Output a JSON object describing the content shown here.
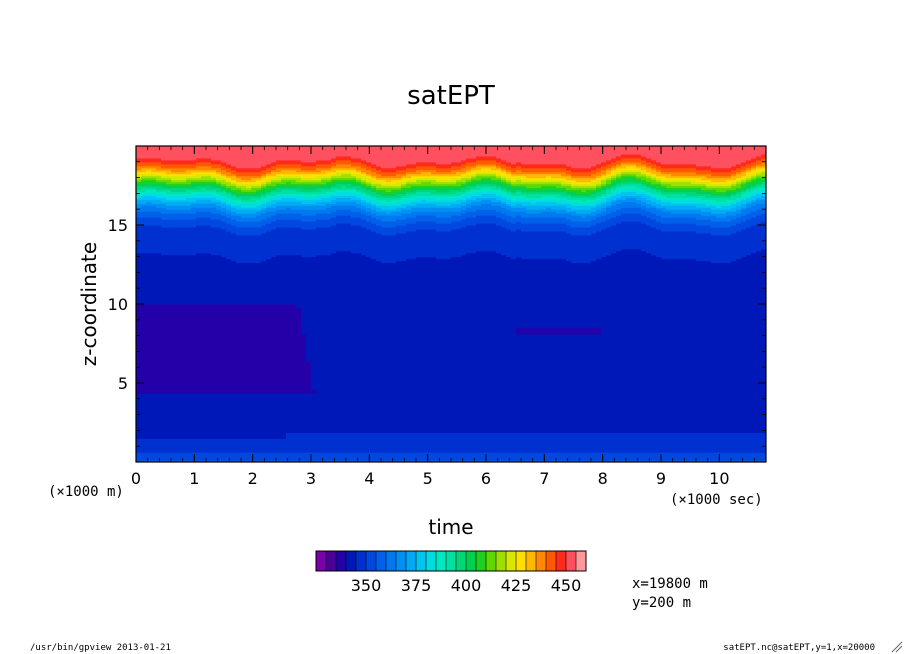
{
  "footer": {
    "left": "/usr/bin/gpview  2013-01-21",
    "right": "satEPT.nc@satEPT,y=1,x=20000"
  },
  "chart_data": {
    "type": "heatmap",
    "title": "satEPT",
    "xlabel": "time",
    "ylabel": "z-coordinate",
    "x_unit_note": "(×1000 sec)",
    "y_unit_note": "(×1000 m)",
    "xlim": [
      0,
      10.8
    ],
    "ylim": [
      0,
      20
    ],
    "xticks": [
      "0",
      "1",
      "2",
      "3",
      "4",
      "5",
      "6",
      "7",
      "8",
      "9",
      "10"
    ],
    "yticks": [
      "5",
      "10",
      "15"
    ],
    "colorbar": {
      "levels": [
        330,
        335,
        340,
        345,
        350,
        355,
        360,
        365,
        370,
        375,
        380,
        385,
        390,
        395,
        400,
        405,
        410,
        415,
        420,
        425,
        430,
        435,
        440,
        445,
        450
      ],
      "labels": [
        "350",
        "375",
        "400",
        "425",
        "450"
      ],
      "colors": [
        "#7a00a8",
        "#4a0098",
        "#2400a8",
        "#0018b8",
        "#0030d0",
        "#0048e0",
        "#0060ea",
        "#0078f0",
        "#0090f4",
        "#00aaf4",
        "#00c4f0",
        "#00dce0",
        "#00e8c0",
        "#00e0a0",
        "#00d878",
        "#00d050",
        "#20d020",
        "#60d800",
        "#a0e000",
        "#d8e800",
        "#ffe000",
        "#ffb800",
        "#ff8800",
        "#ff5a00",
        "#ff2a1a",
        "#ff5060",
        "#ff9898"
      ]
    },
    "annotations": [
      "x=19800 m",
      "y=200 m"
    ],
    "description_levels_by_height": {
      "z_km": [
        0,
        0.4,
        0.9,
        1.5,
        2.5,
        10,
        12.5,
        13.5,
        14.5,
        15,
        15.5,
        16,
        16.5,
        17,
        17.5,
        18,
        18.5,
        19
      ],
      "satEPT": [
        356,
        352,
        348,
        346,
        343,
        341,
        344,
        346,
        348,
        352,
        358,
        366,
        378,
        392,
        408,
        425,
        440,
        450
      ]
    }
  }
}
